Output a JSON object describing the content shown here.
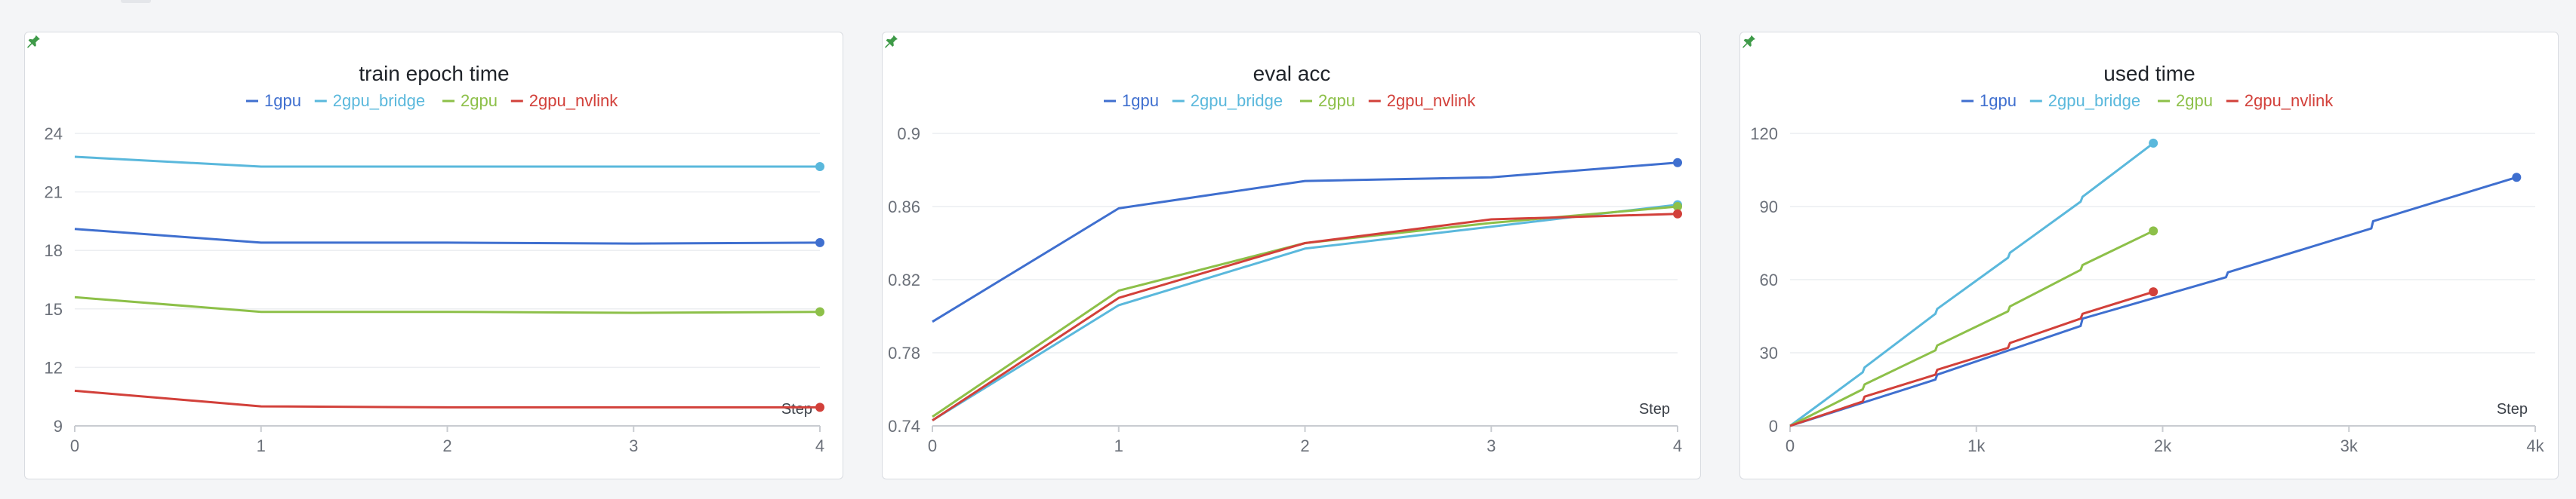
{
  "colors": {
    "1gpu": "#3f6fcf",
    "2gpu_bridge": "#5ab8dc",
    "2gpu": "#8dc049",
    "2gpu_nvlink": "#d2403a",
    "pin": "#3e9a48"
  },
  "icons": {
    "pin": "pin-icon"
  },
  "chart_data": [
    {
      "type": "line",
      "title": "train epoch time",
      "xlabel": "Step",
      "ylabel": "",
      "xlim": [
        0,
        4
      ],
      "ylim": [
        9,
        24
      ],
      "xticks": [
        0,
        1,
        2,
        3,
        4
      ],
      "xtick_labels": [
        "0",
        "1",
        "2",
        "3",
        "4"
      ],
      "yticks": [
        9,
        12,
        15,
        18,
        21,
        24
      ],
      "ytick_labels": [
        "9",
        "12",
        "15",
        "18",
        "21",
        "24"
      ],
      "grid": true,
      "legend": "top",
      "series": [
        {
          "name": "1gpu",
          "x": [
            0,
            1,
            2,
            3,
            4
          ],
          "y": [
            19.1,
            18.4,
            18.4,
            18.35,
            18.4
          ]
        },
        {
          "name": "2gpu_bridge",
          "x": [
            0,
            1,
            2,
            3,
            4
          ],
          "y": [
            22.8,
            22.3,
            22.3,
            22.3,
            22.3
          ]
        },
        {
          "name": "2gpu",
          "x": [
            0,
            1,
            2,
            3,
            4
          ],
          "y": [
            15.6,
            14.85,
            14.85,
            14.8,
            14.85
          ]
        },
        {
          "name": "2gpu_nvlink",
          "x": [
            0,
            1,
            2,
            3,
            4
          ],
          "y": [
            10.8,
            10.0,
            9.95,
            9.95,
            9.95
          ]
        }
      ]
    },
    {
      "type": "line",
      "title": "eval acc",
      "xlabel": "Step",
      "ylabel": "",
      "xlim": [
        0,
        4
      ],
      "ylim": [
        0.74,
        0.9
      ],
      "xticks": [
        0,
        1,
        2,
        3,
        4
      ],
      "xtick_labels": [
        "0",
        "1",
        "2",
        "3",
        "4"
      ],
      "yticks": [
        0.74,
        0.78,
        0.82,
        0.86,
        0.9
      ],
      "ytick_labels": [
        "0.74",
        "0.78",
        "0.82",
        "0.86",
        "0.9"
      ],
      "grid": true,
      "legend": "top",
      "series": [
        {
          "name": "1gpu",
          "x": [
            0,
            1,
            2,
            3,
            4
          ],
          "y": [
            0.797,
            0.859,
            0.874,
            0.876,
            0.884
          ]
        },
        {
          "name": "2gpu_bridge",
          "x": [
            0,
            1,
            2,
            3,
            4
          ],
          "y": [
            0.743,
            0.806,
            0.837,
            0.849,
            0.861
          ]
        },
        {
          "name": "2gpu",
          "x": [
            0,
            1,
            2,
            3,
            4
          ],
          "y": [
            0.745,
            0.814,
            0.84,
            0.851,
            0.86
          ]
        },
        {
          "name": "2gpu_nvlink",
          "x": [
            0,
            1,
            2,
            3,
            4
          ],
          "y": [
            0.743,
            0.81,
            0.84,
            0.853,
            0.856
          ]
        }
      ]
    },
    {
      "type": "line",
      "title": "used time",
      "xlabel": "Step",
      "ylabel": "",
      "xlim": [
        0,
        4000
      ],
      "ylim": [
        0,
        120
      ],
      "xticks": [
        0,
        1000,
        2000,
        3000,
        4000
      ],
      "xtick_labels": [
        "0",
        "1k",
        "2k",
        "3k",
        "4k"
      ],
      "yticks": [
        0,
        30,
        60,
        90,
        120
      ],
      "ytick_labels": [
        "0",
        "30",
        "60",
        "90",
        "120"
      ],
      "grid": true,
      "legend": "top",
      "series": [
        {
          "name": "1gpu",
          "x": [
            0,
            780,
            790,
            1560,
            1570,
            2340,
            2350,
            3120,
            3130,
            3900
          ],
          "y": [
            0,
            19,
            21,
            41,
            44,
            61,
            63,
            81,
            84,
            102
          ]
        },
        {
          "name": "2gpu_bridge",
          "x": [
            0,
            390,
            400,
            780,
            790,
            1170,
            1180,
            1560,
            1570,
            1950
          ],
          "y": [
            0,
            22,
            24,
            46,
            48,
            69,
            71,
            92,
            94,
            116
          ]
        },
        {
          "name": "2gpu",
          "x": [
            0,
            390,
            400,
            780,
            790,
            1170,
            1180,
            1560,
            1570,
            1950
          ],
          "y": [
            0,
            15,
            17,
            31,
            33,
            47,
            49,
            64,
            66,
            80
          ]
        },
        {
          "name": "2gpu_nvlink",
          "x": [
            0,
            390,
            400,
            780,
            790,
            1170,
            1180,
            1560,
            1570,
            1950
          ],
          "y": [
            0,
            10,
            12,
            21,
            23,
            32,
            34,
            44,
            46,
            55
          ]
        }
      ]
    }
  ]
}
